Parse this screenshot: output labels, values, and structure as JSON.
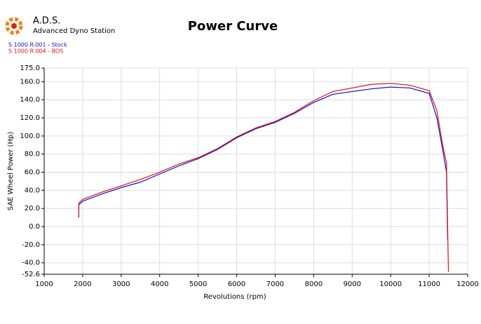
{
  "brand": {
    "name": "A.D.S.",
    "subtitle": "Advanced Dyno Station"
  },
  "chart_data": {
    "type": "line",
    "title": "Power Curve",
    "x_label": "Revolutions (rpm)",
    "y_label": "SAE Wheel Power (Hp)",
    "xlim": [
      1000,
      12000
    ],
    "xticks": [
      1000,
      2000,
      3000,
      4000,
      5000,
      6000,
      7000,
      8000,
      9000,
      10000,
      11000,
      12000
    ],
    "ylim": [
      -52.6,
      175
    ],
    "yticks": [
      {
        "value": 175,
        "label": "175.0"
      },
      {
        "value": 160,
        "label": "160.0"
      },
      {
        "value": 140,
        "label": "140.0"
      },
      {
        "value": 120,
        "label": "120.0"
      },
      {
        "value": 100,
        "label": "100.0"
      },
      {
        "value": 80,
        "label": "80.0"
      },
      {
        "value": 60,
        "label": "60.0"
      },
      {
        "value": 40,
        "label": "40.0"
      },
      {
        "value": 20,
        "label": "20.0"
      },
      {
        "value": 0,
        "label": "0.0"
      },
      {
        "value": -20,
        "label": "-20.0"
      },
      {
        "value": -40,
        "label": "-40.0"
      },
      -52.6
    ],
    "grid": true,
    "series": [
      {
        "name": "S 1000 R.001 - Stock",
        "color": "#1010c8",
        "x": [
          1900,
          1900,
          2000,
          2500,
          3000,
          3500,
          4000,
          4500,
          5000,
          5500,
          6000,
          6500,
          7000,
          7500,
          8000,
          8500,
          9000,
          9500,
          10000,
          10500,
          11000,
          11200,
          11350,
          11450,
          11480
        ],
        "values": [
          10,
          24,
          28,
          36,
          43,
          49,
          58,
          67,
          75,
          85,
          98,
          108,
          115,
          125,
          137,
          146,
          149,
          152,
          154,
          153,
          147,
          120,
          85,
          60,
          -15
        ]
      },
      {
        "name": "S 1000 R.004 - BOS",
        "color": "#e01010",
        "x": [
          1900,
          1900,
          2000,
          2500,
          3000,
          3500,
          4000,
          4500,
          5000,
          5500,
          6000,
          6500,
          7000,
          7500,
          8000,
          8500,
          9000,
          9500,
          10000,
          10500,
          11000,
          11200,
          11350,
          11450,
          11500
        ],
        "values": [
          12,
          26,
          30,
          38,
          45,
          52,
          60,
          69,
          76,
          86,
          99,
          109,
          116,
          126,
          139,
          149,
          153,
          157,
          158,
          156,
          150,
          128,
          90,
          70,
          -50
        ]
      }
    ]
  }
}
